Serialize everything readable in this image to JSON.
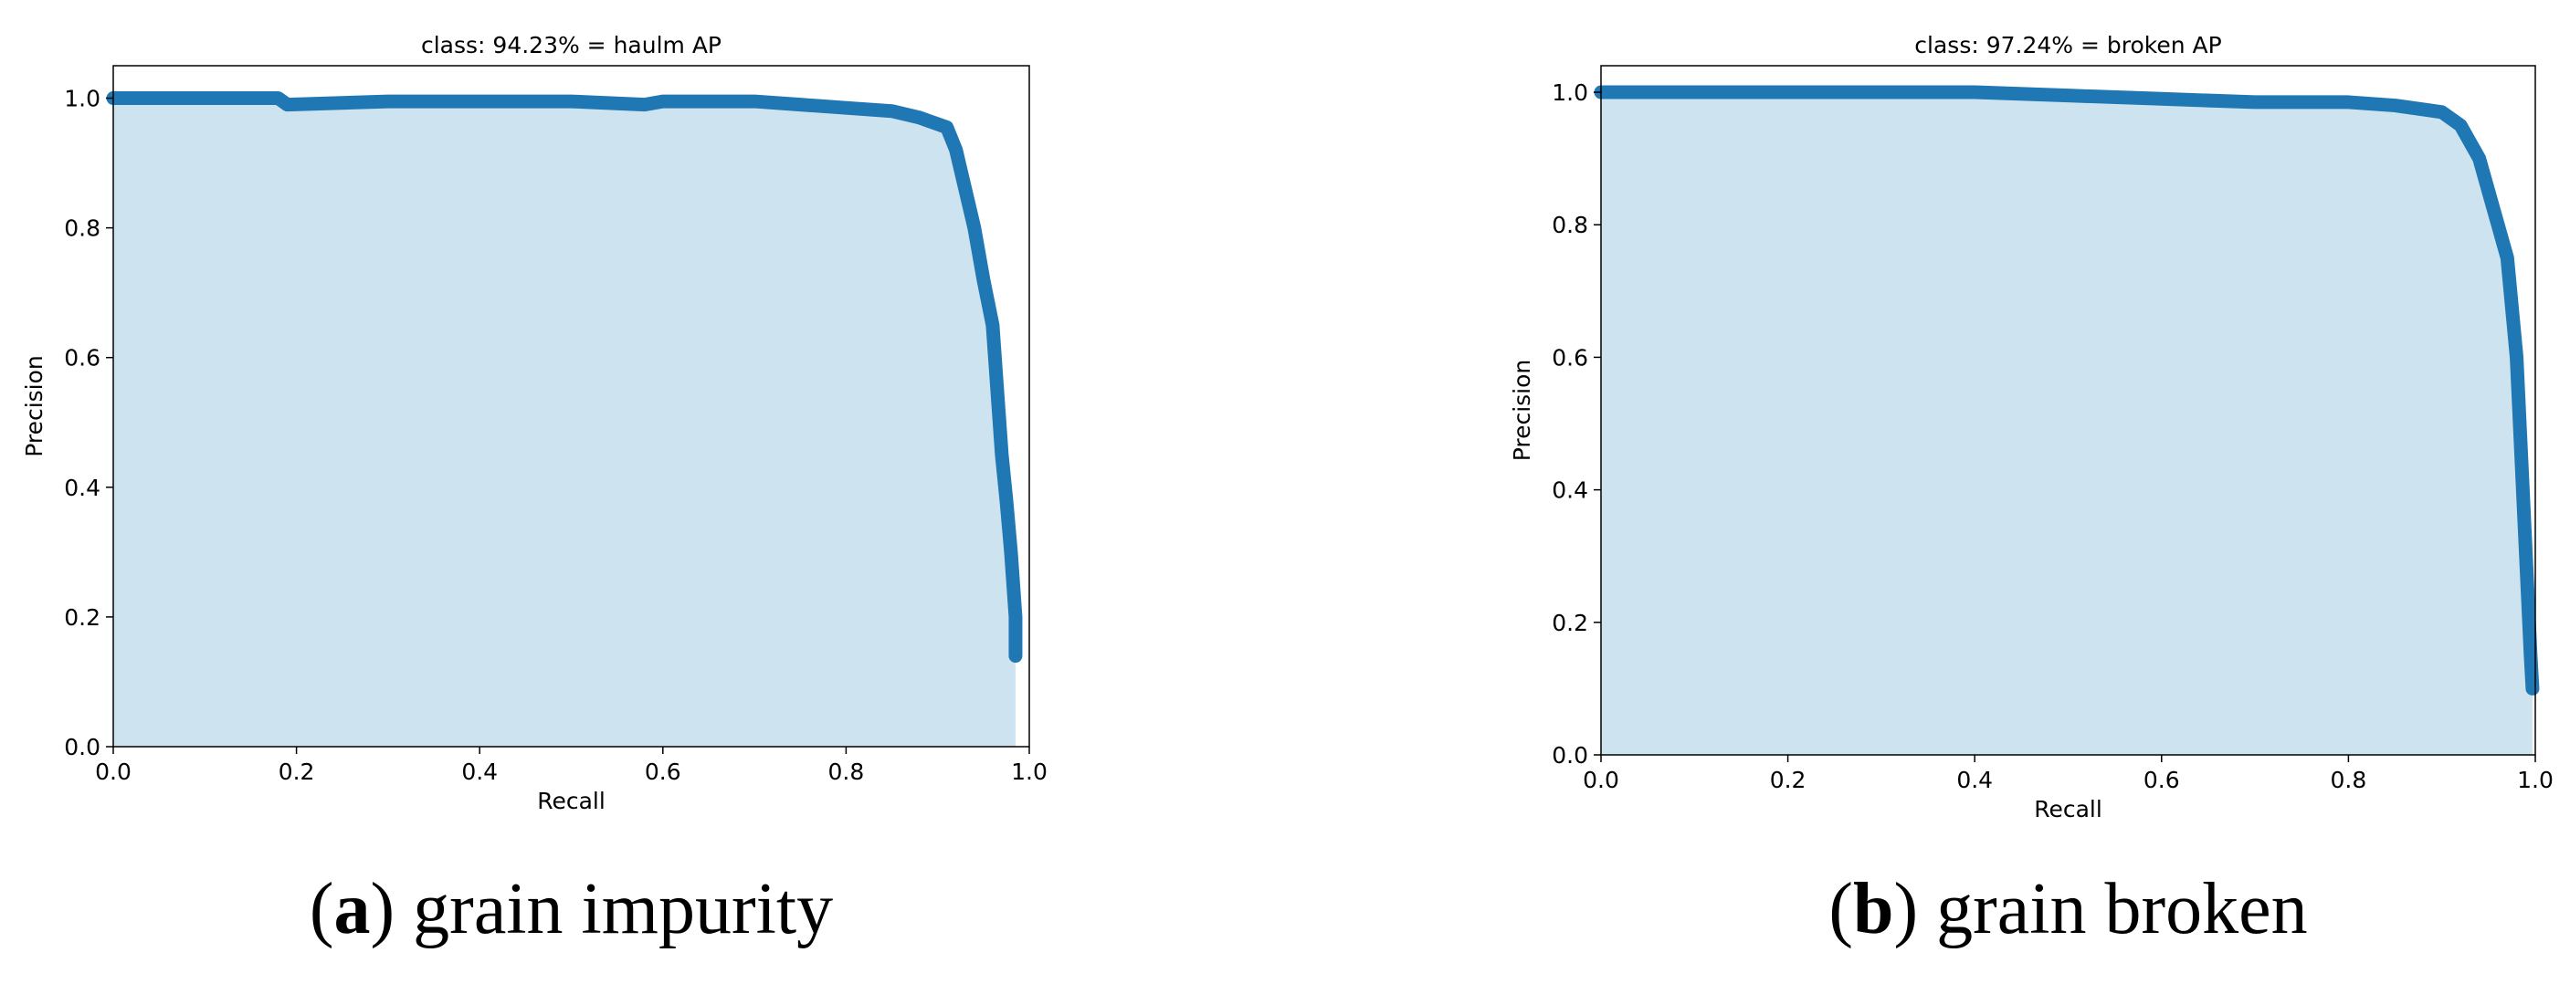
{
  "chart_data": [
    {
      "type": "line",
      "title": "class: 94.23% = haulm AP",
      "xlabel": "Recall",
      "ylabel": "Precision",
      "caption": [
        "(",
        "a",
        ") grain impurity"
      ],
      "x": [
        0,
        0.18,
        0.19,
        0.3,
        0.5,
        0.58,
        0.6,
        0.7,
        0.75,
        0.8,
        0.85,
        0.88,
        0.91,
        0.92,
        0.93,
        0.94,
        0.95,
        0.96,
        0.965,
        0.97,
        0.975,
        0.98,
        0.985,
        0.985
      ],
      "values": [
        1.0,
        1.0,
        0.99,
        0.995,
        0.995,
        0.99,
        0.995,
        0.995,
        0.99,
        0.985,
        0.98,
        0.97,
        0.955,
        0.92,
        0.86,
        0.8,
        0.72,
        0.65,
        0.55,
        0.45,
        0.38,
        0.3,
        0.2,
        0.14
      ],
      "color": "#1f77b4",
      "fill_color": "#cde4f0",
      "xlim": [
        0,
        1
      ],
      "ylim": [
        0,
        1.05
      ],
      "xticks": [
        {
          "value": 0,
          "label": "0.0"
        },
        {
          "value": 0.2,
          "label": "0.2"
        },
        {
          "value": 0.4,
          "label": "0.4"
        },
        {
          "value": 0.6,
          "label": "0.6"
        },
        {
          "value": 0.8,
          "label": "0.8"
        },
        {
          "value": 1,
          "label": "1.0"
        }
      ],
      "yticks": [
        {
          "value": 0,
          "label": "0.0"
        },
        {
          "value": 0.2,
          "label": "0.2"
        },
        {
          "value": 0.4,
          "label": "0.4"
        },
        {
          "value": 0.6,
          "label": "0.6"
        },
        {
          "value": 0.8,
          "label": "0.8"
        },
        {
          "value": 1,
          "label": "1.0"
        }
      ]
    },
    {
      "type": "line",
      "title": "class: 97.24% = broken AP",
      "xlabel": "Recall",
      "ylabel": "Precision",
      "caption": [
        "(",
        "b",
        ") grain broken"
      ],
      "x": [
        0,
        0.4,
        0.5,
        0.6,
        0.7,
        0.8,
        0.85,
        0.9,
        0.92,
        0.94,
        0.95,
        0.96,
        0.97,
        0.98,
        0.985,
        0.99,
        0.995,
        0.997
      ],
      "values": [
        1.0,
        1.0,
        0.995,
        0.99,
        0.985,
        0.985,
        0.98,
        0.97,
        0.95,
        0.9,
        0.85,
        0.8,
        0.75,
        0.6,
        0.45,
        0.3,
        0.15,
        0.1
      ],
      "color": "#1f77b4",
      "fill_color": "#cde4f0",
      "xlim": [
        0,
        1
      ],
      "ylim": [
        0,
        1.04
      ],
      "xticks": [
        {
          "value": 0,
          "label": "0.0"
        },
        {
          "value": 0.2,
          "label": "0.2"
        },
        {
          "value": 0.4,
          "label": "0.4"
        },
        {
          "value": 0.6,
          "label": "0.6"
        },
        {
          "value": 0.8,
          "label": "0.8"
        },
        {
          "value": 1,
          "label": "1.0"
        }
      ],
      "yticks": [
        {
          "value": 0,
          "label": "0.0"
        },
        {
          "value": 0.2,
          "label": "0.2"
        },
        {
          "value": 0.4,
          "label": "0.4"
        },
        {
          "value": 0.6,
          "label": "0.6"
        },
        {
          "value": 0.8,
          "label": "0.8"
        },
        {
          "value": 1,
          "label": "1.0"
        }
      ]
    }
  ]
}
